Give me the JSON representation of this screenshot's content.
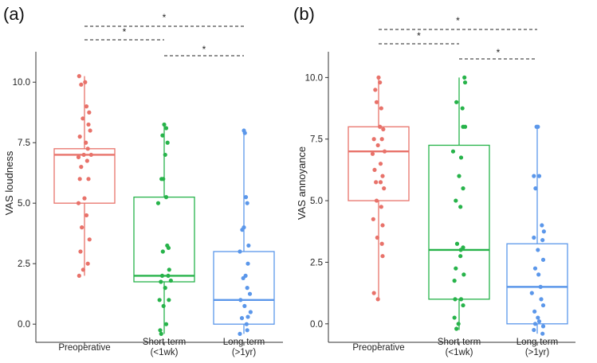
{
  "chart_data": [
    {
      "type": "box",
      "panel_label": "(a)",
      "ylabel": "VAS loudness",
      "xlabel": "",
      "ylim": [
        -0.75,
        10.6
      ],
      "yticks": [
        "0.0",
        "2.5",
        "5.0",
        "7.5",
        "10.0"
      ],
      "ytick_values": [
        0,
        2.5,
        5,
        7.5,
        10
      ],
      "categories": [
        {
          "line1": "Preoperative",
          "line2": ""
        },
        {
          "line1": "Short-term",
          "line2": "(<1wk)"
        },
        {
          "line1": "Long-term",
          "line2": "(>1yr)"
        }
      ],
      "colors": [
        "#e8726a",
        "#27b34a",
        "#5b97ea"
      ],
      "boxes": [
        {
          "q1": 5.0,
          "median": 7.0,
          "q3": 7.25,
          "whisker_low": 2.0,
          "whisker_high": 10.25
        },
        {
          "q1": 1.75,
          "median": 2.0,
          "q3": 5.25,
          "whisker_low": -0.4,
          "whisker_high": 8.25
        },
        {
          "q1": 0.0,
          "median": 1.0,
          "q3": 3.0,
          "whisker_low": -0.4,
          "whisker_high": 8.0
        }
      ],
      "points": [
        [
          10.25,
          10.0,
          9.9,
          9.0,
          8.75,
          8.5,
          8.25,
          8.0,
          7.75,
          7.5,
          7.25,
          7.0,
          7.0,
          6.9,
          6.75,
          6.5,
          6.0,
          6.0,
          5.2,
          5.0,
          4.5,
          4.0,
          3.5,
          3.0,
          2.5,
          2.25,
          2.0
        ],
        [
          8.25,
          8.1,
          7.8,
          7.5,
          7.0,
          6.0,
          6.0,
          5.25,
          5.0,
          3.25,
          3.15,
          3.0,
          2.25,
          2.0,
          2.0,
          1.8,
          1.75,
          1.5,
          1.0,
          1.0,
          0.75,
          0.0,
          -0.25,
          -0.4
        ],
        [
          8.0,
          7.9,
          5.25,
          5.0,
          4.0,
          3.9,
          3.25,
          3.0,
          2.5,
          2.0,
          1.9,
          1.5,
          1.25,
          1.0,
          0.75,
          0.5,
          0.3,
          0.25,
          0.0,
          -0.25,
          -0.4
        ]
      ],
      "jitter": [
        [
          -0.16,
          0.02,
          -0.1,
          0.06,
          0.14,
          -0.05,
          0.12,
          0.17,
          -0.14,
          0.04,
          0.1,
          -0.02,
          0.2,
          -0.18,
          0.08,
          -0.1,
          -0.14,
          0.12,
          0.0,
          -0.18,
          0.06,
          -0.08,
          0.15,
          -0.12,
          0.1,
          -0.04,
          -0.16
        ],
        [
          0.0,
          0.06,
          -0.05,
          0.1,
          0.03,
          -0.08,
          -0.03,
          0.06,
          -0.18,
          0.09,
          0.13,
          -0.04,
          0.15,
          0.12,
          -0.06,
          0.2,
          -0.1,
          0.03,
          0.14,
          -0.14,
          -0.02,
          0.06,
          -0.12,
          -0.09
        ],
        [
          0.0,
          0.03,
          0.06,
          0.1,
          0.0,
          -0.05,
          0.14,
          -0.12,
          0.12,
          0.05,
          -0.02,
          0.1,
          0.18,
          -0.1,
          0.02,
          0.2,
          0.12,
          -0.06,
          0.08,
          0.1,
          -0.12
        ]
      ],
      "significance": [
        {
          "from": 0,
          "to": 2,
          "label": "*"
        },
        {
          "from": 0,
          "to": 1,
          "label": "*"
        },
        {
          "from": 1,
          "to": 2,
          "label": "*"
        }
      ]
    },
    {
      "type": "box",
      "panel_label": "(b)",
      "ylabel": "VAS annoyance",
      "xlabel": "",
      "ylim": [
        -0.75,
        10.4
      ],
      "yticks": [
        "0.0",
        "2.5",
        "5.0",
        "7.5",
        "10.0"
      ],
      "ytick_values": [
        0,
        2.5,
        5,
        7.5,
        10
      ],
      "categories": [
        {
          "line1": "Preoperative",
          "line2": ""
        },
        {
          "line1": "Short-term",
          "line2": "(<1wk)"
        },
        {
          "line1": "Long-term",
          "line2": "(>1yr)"
        }
      ],
      "colors": [
        "#e8726a",
        "#27b34a",
        "#5b97ea"
      ],
      "boxes": [
        {
          "q1": 5.0,
          "median": 7.0,
          "q3": 8.0,
          "whisker_low": 1.0,
          "whisker_high": 10.0
        },
        {
          "q1": 1.0,
          "median": 3.0,
          "q3": 7.25,
          "whisker_low": -0.25,
          "whisker_high": 10.0
        },
        {
          "q1": 0.0,
          "median": 1.5,
          "q3": 3.25,
          "whisker_low": -0.4,
          "whisker_high": 8.0
        }
      ],
      "points": [
        [
          10.0,
          9.8,
          9.5,
          9.0,
          8.75,
          8.0,
          7.9,
          7.5,
          7.5,
          7.25,
          7.0,
          6.9,
          6.5,
          6.25,
          6.0,
          5.75,
          5.75,
          5.5,
          5.0,
          4.75,
          4.25,
          4.0,
          3.5,
          3.25,
          2.75,
          1.25,
          1.0
        ],
        [
          10.0,
          9.8,
          9.0,
          8.75,
          8.0,
          8.0,
          7.0,
          6.75,
          6.0,
          5.5,
          5.0,
          4.75,
          3.25,
          3.1,
          3.0,
          2.75,
          2.25,
          2.0,
          1.75,
          1.0,
          1.0,
          0.75,
          0.25,
          0.0,
          -0.2
        ],
        [
          8.0,
          8.0,
          6.0,
          6.0,
          5.5,
          4.0,
          3.75,
          3.5,
          3.4,
          3.0,
          2.6,
          2.25,
          2.0,
          1.5,
          1.25,
          1.0,
          0.75,
          0.5,
          0.25,
          0.1,
          0.0,
          -0.1,
          -0.25,
          -0.4
        ]
      ],
      "jitter": [
        [
          0.0,
          0.04,
          -0.1,
          -0.06,
          0.08,
          0.04,
          0.14,
          -0.14,
          0.1,
          -0.02,
          0.18,
          -0.18,
          0.06,
          -0.12,
          0.12,
          -0.08,
          0.06,
          0.16,
          -0.06,
          0.08,
          -0.16,
          0.12,
          -0.04,
          0.1,
          0.12,
          -0.14,
          -0.02
        ],
        [
          0.16,
          0.18,
          -0.08,
          0.1,
          0.12,
          0.18,
          -0.18,
          0.06,
          0.0,
          0.12,
          -0.1,
          0.04,
          -0.06,
          0.12,
          0.05,
          0.04,
          -0.1,
          0.14,
          -0.14,
          0.06,
          -0.12,
          0.12,
          -0.14,
          -0.02,
          -0.08
        ],
        [
          0.02,
          -0.02,
          0.06,
          -0.1,
          -0.05,
          0.14,
          0.2,
          -0.1,
          0.16,
          0.02,
          0.18,
          -0.06,
          0.04,
          0.1,
          -0.16,
          0.12,
          0.18,
          -0.08,
          0.02,
          0.06,
          -0.06,
          0.18,
          -0.1,
          0.16
        ]
      ],
      "significance": [
        {
          "from": 0,
          "to": 2,
          "label": "*"
        },
        {
          "from": 0,
          "to": 1,
          "label": "*"
        },
        {
          "from": 1,
          "to": 2,
          "label": "*"
        }
      ]
    }
  ]
}
